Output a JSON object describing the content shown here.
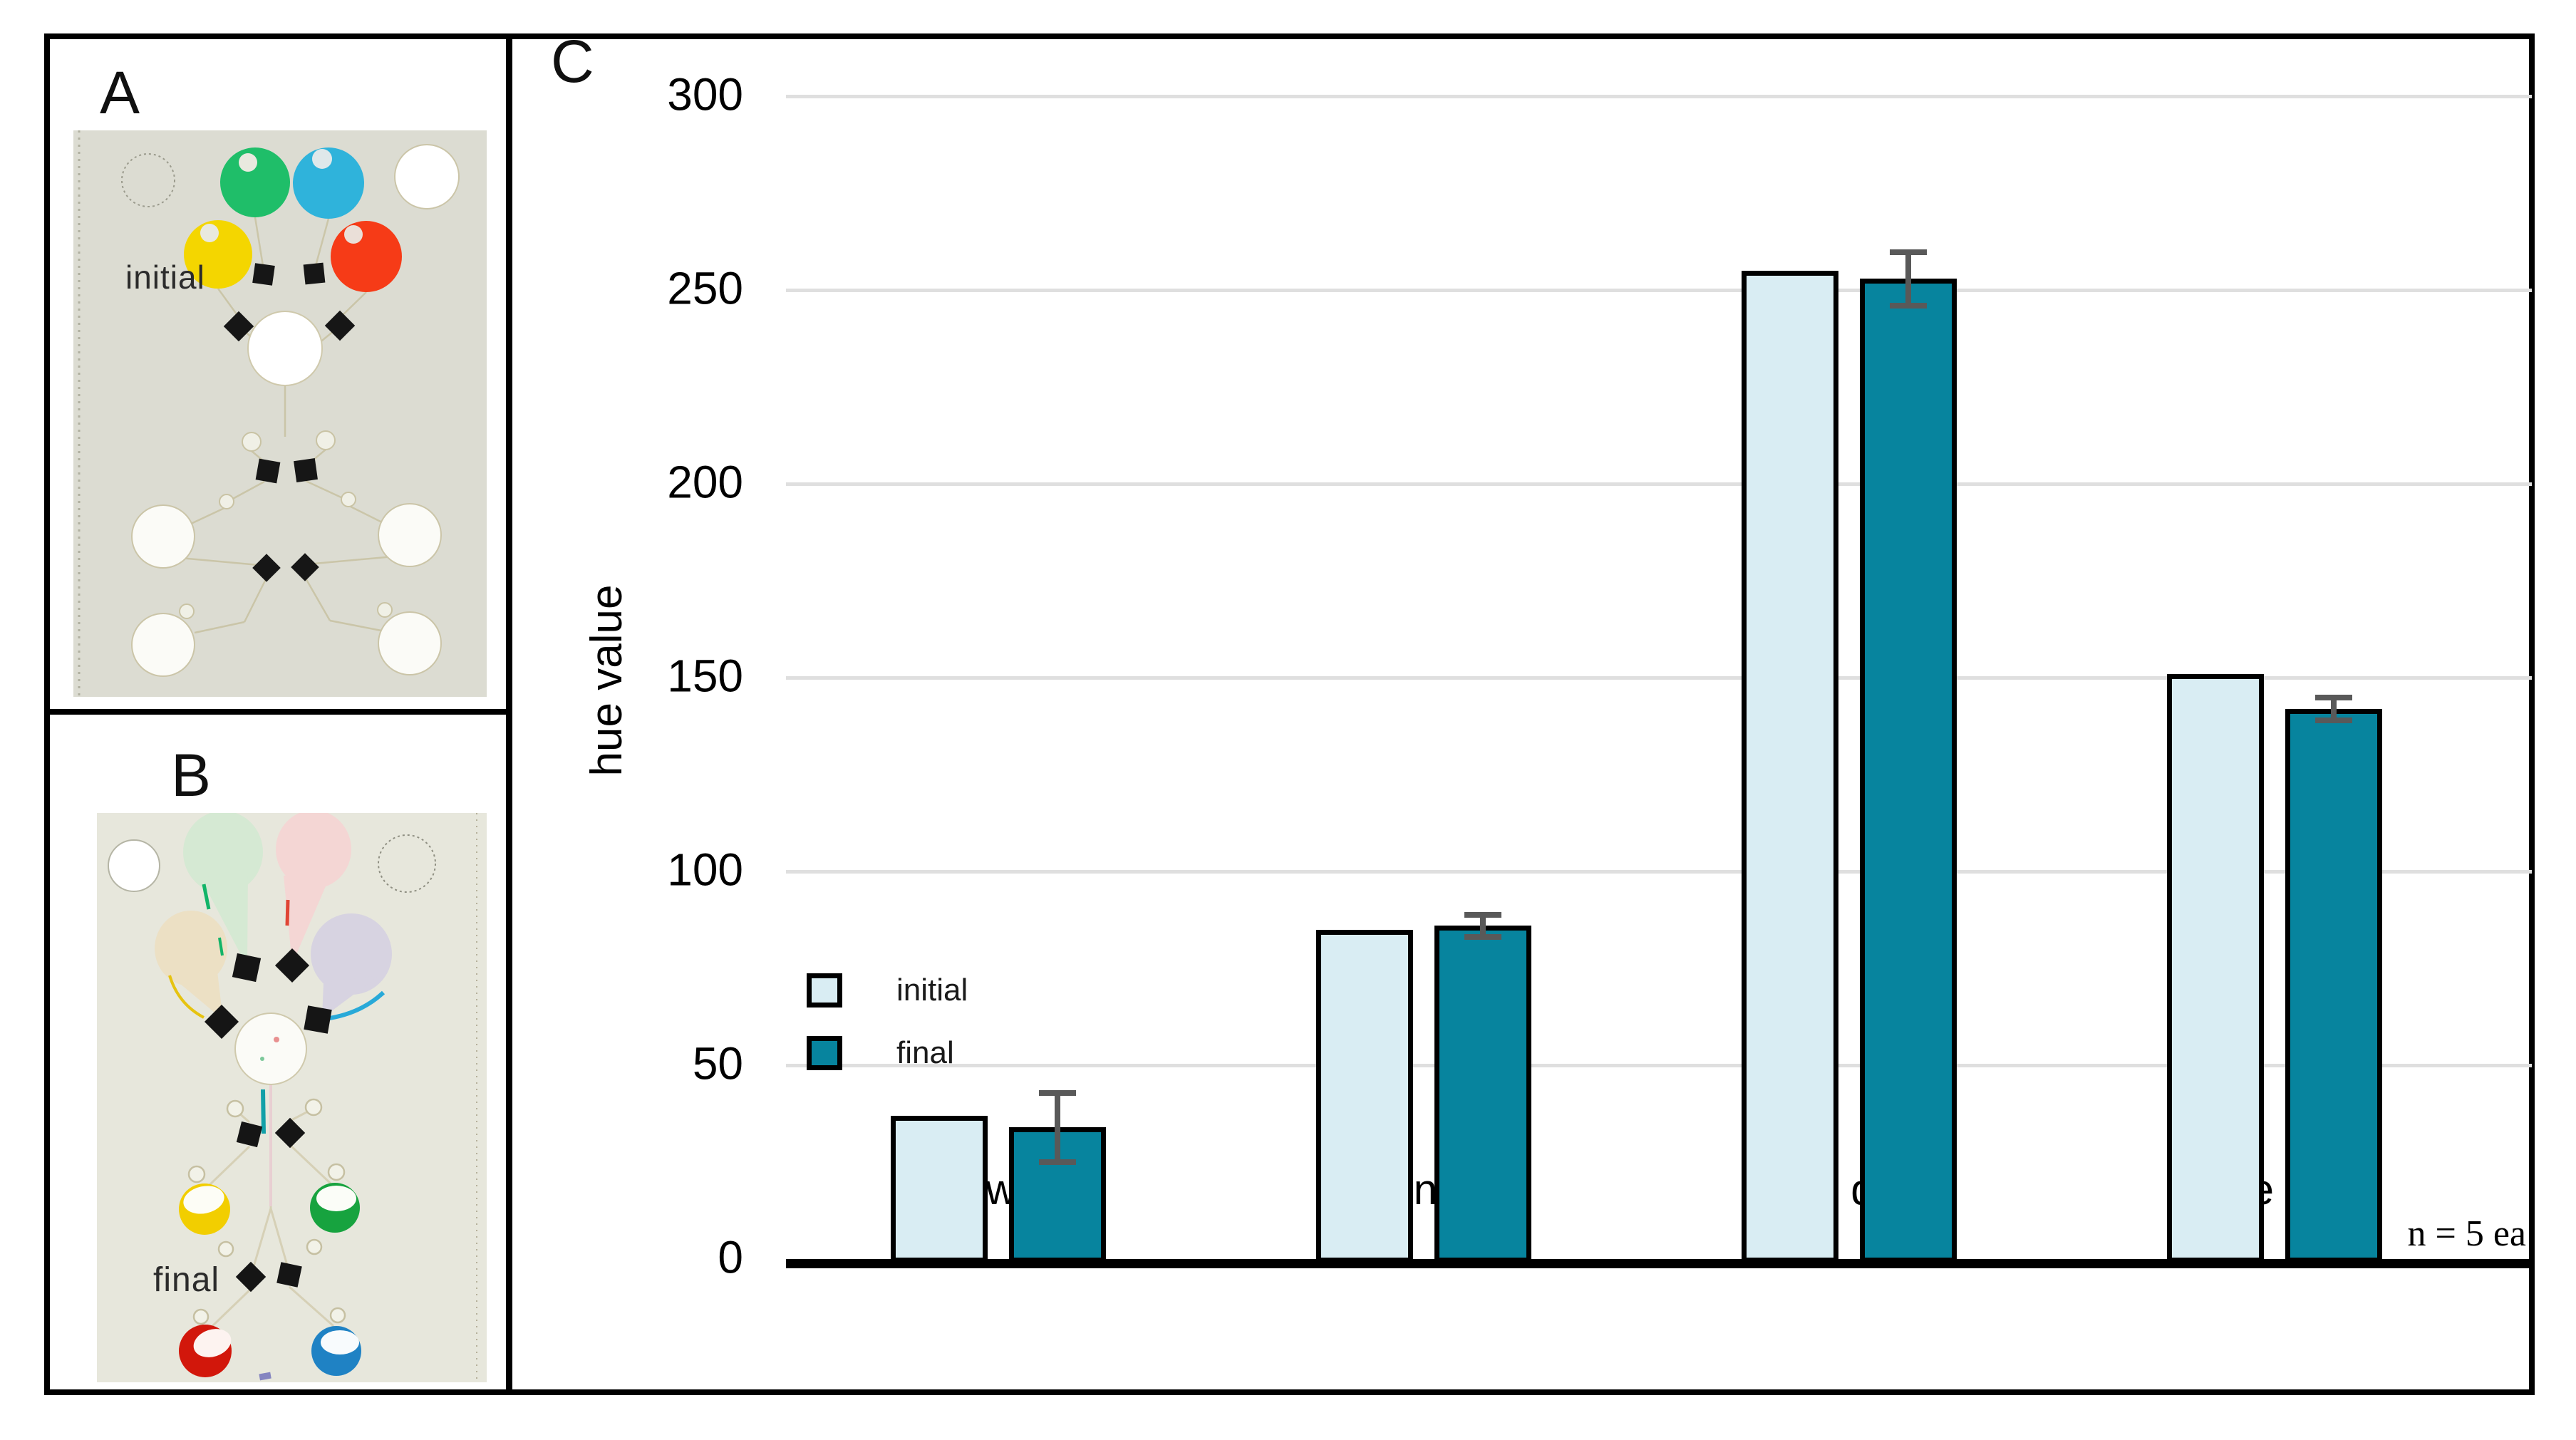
{
  "panels": {
    "a": {
      "label": "A",
      "caption": "initial",
      "description": "photo of paper microfluidic device with yellow, green, blue and red dye reservoirs before mixing"
    },
    "b": {
      "label": "B",
      "caption": "final",
      "description": "photo of same device after flow: faded teardrop reservoirs, central mixing zone, yellow/green/red/blue collection wells"
    },
    "c": {
      "label": "C"
    }
  },
  "chart_data": {
    "type": "bar",
    "title": "",
    "xlabel": "",
    "ylabel": "hue value",
    "ylim": [
      0,
      300
    ],
    "yticks": [
      0,
      50,
      100,
      150,
      200,
      250,
      300
    ],
    "grid": true,
    "legend_position": "left of plot, mid-height",
    "annotation": "n = 5 ea",
    "categories": [
      "yellow dye",
      "green dye",
      "red dye",
      "blue dye"
    ],
    "series": [
      {
        "name": "initial",
        "color": "#d9edf3",
        "values": [
          37,
          85,
          255,
          151
        ],
        "error_bars": [
          0,
          0,
          0,
          0
        ]
      },
      {
        "name": "final",
        "color": "#07849e",
        "values": [
          34,
          86,
          253,
          142
        ],
        "error_bars": [
          9,
          3,
          7,
          3
        ]
      }
    ],
    "bar_border_color": "#000000",
    "error_bar_color": "#595959",
    "gridline_color": "#dfdfdf"
  },
  "colors": {
    "frame": "#000000",
    "photo_bg_initial": "#dcdcd2",
    "photo_bg_final": "#e7e7dc"
  }
}
